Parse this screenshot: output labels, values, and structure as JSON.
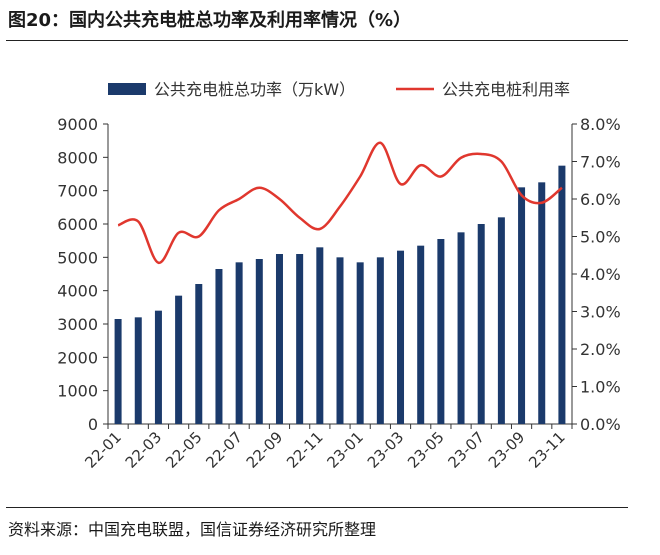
{
  "title": "图20：国内公共充电桩总功率及利用率情况（%）",
  "source": "资料来源：中国充电联盟，国信证券经济研究所整理",
  "colors": {
    "bar": "#1b3a6b",
    "line": "#e0372e",
    "axis": "#333333",
    "text": "#333333"
  },
  "chart_data": {
    "type": "bar",
    "categories": [
      "22-01",
      "22-02",
      "22-03",
      "22-04",
      "22-05",
      "22-06",
      "22-07",
      "22-08",
      "22-09",
      "22-10",
      "22-11",
      "22-12",
      "23-01",
      "23-02",
      "23-03",
      "23-04",
      "23-05",
      "23-06",
      "23-07",
      "23-08",
      "23-09",
      "23-10",
      "23-11"
    ],
    "x_tick_labels": [
      "22-01",
      "22-03",
      "22-05",
      "22-07",
      "22-09",
      "22-11",
      "23-01",
      "23-03",
      "23-05",
      "23-07",
      "23-09",
      "23-11"
    ],
    "y_left_ticks": [
      "0",
      "1000",
      "2000",
      "3000",
      "4000",
      "5000",
      "6000",
      "7000",
      "8000",
      "9000"
    ],
    "y_right_ticks": [
      "0.0%",
      "1.0%",
      "2.0%",
      "3.0%",
      "4.0%",
      "5.0%",
      "6.0%",
      "7.0%",
      "8.0%"
    ],
    "ylim_left": [
      0,
      9000
    ],
    "ylim_right": [
      0,
      8
    ],
    "legend_position": "top",
    "series": [
      {
        "name": "公共充电桩总功率（万kW）",
        "type": "bar",
        "axis": "left",
        "values": [
          3150,
          3200,
          3400,
          3850,
          4200,
          4650,
          4850,
          4950,
          5100,
          5100,
          5300,
          5000,
          4850,
          5000,
          5200,
          5350,
          5550,
          5750,
          6000,
          6200,
          7100,
          7250,
          7750
        ]
      },
      {
        "name": "公共充电桩利用率",
        "type": "line",
        "axis": "right",
        "values": [
          5.3,
          5.4,
          4.3,
          5.1,
          5.0,
          5.7,
          6.0,
          6.3,
          6.0,
          5.5,
          5.2,
          5.8,
          6.6,
          7.5,
          6.4,
          6.9,
          6.6,
          7.1,
          7.2,
          7.0,
          6.1,
          5.9,
          6.3
        ]
      }
    ]
  }
}
